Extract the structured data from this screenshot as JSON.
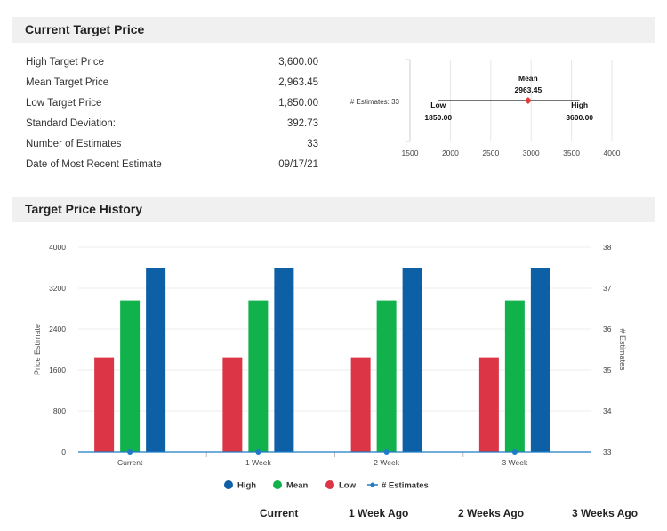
{
  "sections": {
    "current_title": "Current Target Price",
    "history_title": "Target Price History"
  },
  "stats": [
    {
      "label": "High Target Price",
      "value": "3,600.00"
    },
    {
      "label": "Mean Target Price",
      "value": "2,963.45"
    },
    {
      "label": "Low Target Price",
      "value": "1,850.00"
    },
    {
      "label": "Standard Deviation:",
      "value": "392.73"
    },
    {
      "label": "Number of Estimates",
      "value": "33"
    },
    {
      "label": "Date of Most Recent Estimate",
      "value": "09/17/21"
    }
  ],
  "range_chart": {
    "estimates_label": "# Estimates: 33",
    "low_label": "Low",
    "low_value": "1850.00",
    "mean_label": "Mean",
    "mean_value": "2963.45",
    "high_label": "High",
    "high_value": "3600.00",
    "low": 1850,
    "mean": 2963.45,
    "high": 3600,
    "xlim": [
      1500,
      4000
    ],
    "ticks": [
      "1500",
      "2000",
      "2500",
      "3000",
      "3500",
      "4000"
    ],
    "colors": {
      "line": "#222222",
      "marker": "#e03c3c"
    }
  },
  "chart_data": {
    "type": "bar",
    "categories": [
      "Current",
      "1 Week",
      "2 Week",
      "3 Week"
    ],
    "series": [
      {
        "name": "High",
        "values": [
          3600,
          3600,
          3600,
          3600
        ],
        "color": "#0d5fa6"
      },
      {
        "name": "Mean",
        "values": [
          2963.45,
          2963.45,
          2963.45,
          2963.45
        ],
        "color": "#11b24c"
      },
      {
        "name": "Low",
        "values": [
          1850,
          1850,
          1850,
          1850
        ],
        "color": "#dc3545"
      },
      {
        "name": "# Estimates",
        "values": [
          33,
          33,
          33,
          33
        ],
        "color": "#1f7cc4",
        "axis": "right",
        "kind": "line"
      }
    ],
    "bar_order": [
      "Low",
      "Mean",
      "High"
    ],
    "ylabel": "Price Estimate",
    "ylabel_right": "# Estimates",
    "ylim": [
      0,
      4000
    ],
    "ylim_right": [
      33,
      38
    ],
    "yticks": [
      "4000",
      "3200",
      "2400",
      "1600",
      "800",
      "0"
    ],
    "yticks_right": [
      "38",
      "37",
      "36",
      "35",
      "34",
      "33"
    ],
    "legend_position": "bottom"
  },
  "column_headers": [
    "Current",
    "1 Week Ago",
    "2 Weeks Ago",
    "3 Weeks Ago"
  ]
}
